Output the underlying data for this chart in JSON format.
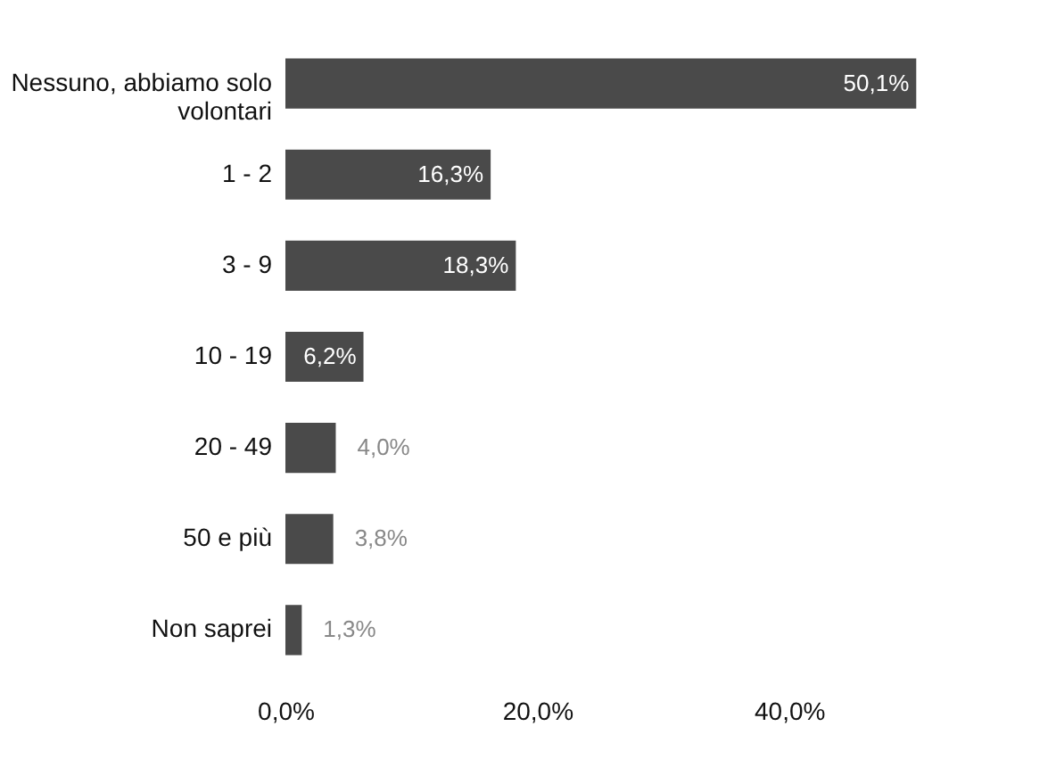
{
  "chart_data": {
    "type": "bar",
    "orientation": "horizontal",
    "categories": [
      "Nessuno, abbiamo solo\nvolontari",
      "1 - 2",
      "3 - 9",
      "10 - 19",
      "20 - 49",
      "50 e più",
      "Non saprei"
    ],
    "values": [
      50.1,
      16.3,
      18.3,
      6.2,
      4.0,
      3.8,
      1.3
    ],
    "value_labels": [
      "50,1%",
      "16,3%",
      "18,3%",
      "6,2%",
      "4,0%",
      "3,8%",
      "1,3%"
    ],
    "color": "#4a4a4a",
    "xlim": [
      0,
      51
    ],
    "xticks": [
      {
        "value": 0,
        "label": "0,0%"
      },
      {
        "value": 20,
        "label": "20,0%"
      },
      {
        "value": 40,
        "label": "40,0%"
      }
    ],
    "grid": false
  }
}
